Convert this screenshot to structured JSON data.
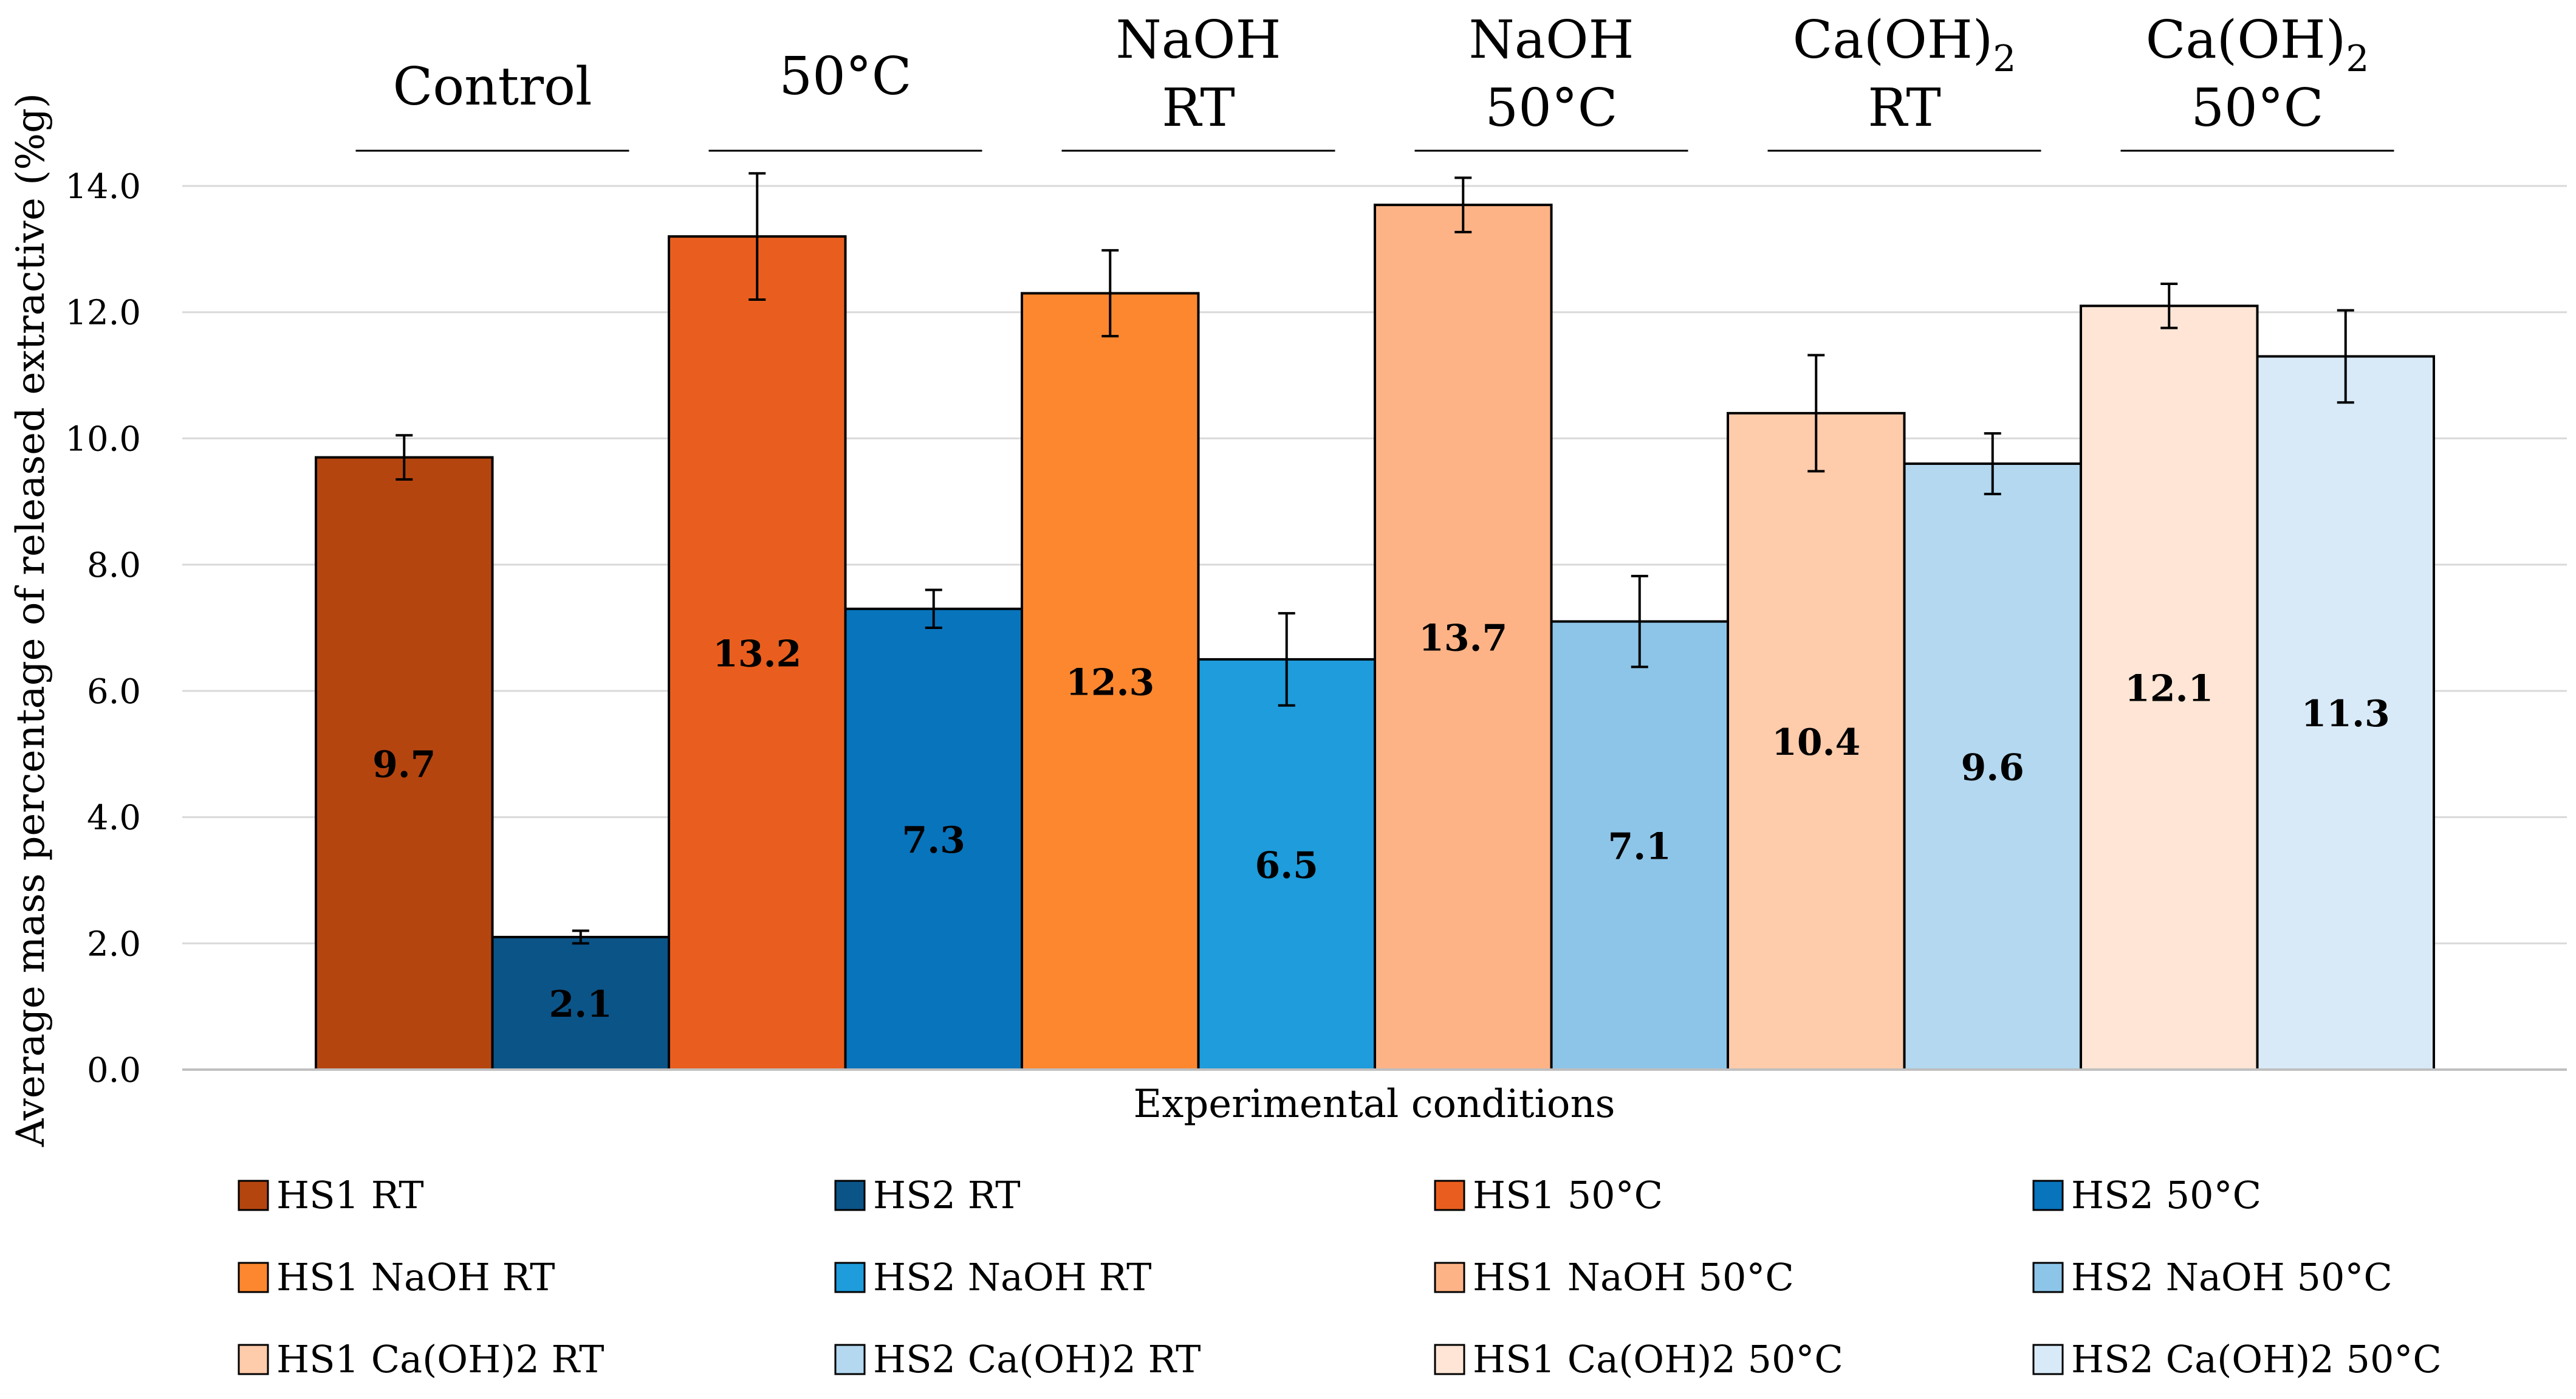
{
  "chart_data": {
    "type": "bar",
    "title": "",
    "xlabel": "Experimental conditions",
    "ylabel": "Average mass percentage of released extractive (%g)",
    "ylim": [
      0,
      14
    ],
    "yticks": [
      "0.0",
      "2.0",
      "4.0",
      "6.0",
      "8.0",
      "10.0",
      "12.0",
      "14.0"
    ],
    "grid": true,
    "legend_position": "bottom",
    "groups": [
      {
        "name": "Control",
        "line1": "Control",
        "line2": ""
      },
      {
        "name": "50°C",
        "line1": "50°C",
        "line2": ""
      },
      {
        "name": "NaOH RT",
        "line1": "NaOH",
        "line2": "RT"
      },
      {
        "name": "NaOH 50°C",
        "line1": "NaOH",
        "line2": "50°C"
      },
      {
        "name": "Ca(OH)2 RT",
        "line1": "Ca(OH)",
        "sub": "2",
        "line2": "RT"
      },
      {
        "name": "Ca(OH)2 50°C",
        "line1": "Ca(OH)",
        "sub": "2",
        "line2": "50°C"
      }
    ],
    "series": [
      {
        "name": "HS1 RT",
        "color": "#B5450F",
        "value": 9.7,
        "label": "9.7",
        "error": 0.35
      },
      {
        "name": "HS2 RT",
        "color": "#0B5488",
        "value": 2.1,
        "label": "2.1",
        "error": 0.1
      },
      {
        "name": "HS1 50°C",
        "color": "#E95E1E",
        "value": 13.2,
        "label": "13.2",
        "error": 1.0
      },
      {
        "name": "HS2 50°C",
        "color": "#0874BC",
        "value": 7.3,
        "label": "7.3",
        "error": 0.3
      },
      {
        "name": "HS1 NaOH RT",
        "color": "#FD872F",
        "value": 12.3,
        "label": "12.3",
        "error": 0.68
      },
      {
        "name": "HS2 NaOH RT",
        "color": "#1E9CDB",
        "value": 6.5,
        "label": "6.5",
        "error": 0.73
      },
      {
        "name": "HS1 NaOH 50°C",
        "color": "#FEB386",
        "value": 13.7,
        "label": "13.7",
        "error": 0.43
      },
      {
        "name": "HS2 NaOH 50°C",
        "color": "#8DC5E9",
        "value": 7.1,
        "label": "7.1",
        "error": 0.72
      },
      {
        "name": "HS1 Ca(OH)2 RT",
        "color": "#FECBAB",
        "value": 10.4,
        "label": "10.4",
        "error": 0.92
      },
      {
        "name": "HS2 Ca(OH)2 RT",
        "color": "#B3D8EF",
        "value": 9.6,
        "label": "9.6",
        "error": 0.48
      },
      {
        "name": "HS1 Ca(OH)2 50°C",
        "color": "#FEE5D5",
        "value": 12.1,
        "label": "12.1",
        "error": 0.35
      },
      {
        "name": "HS2 Ca(OH)2 50°C",
        "color": "#D8EAF8",
        "value": 11.3,
        "label": "11.3",
        "error": 0.73
      }
    ]
  }
}
